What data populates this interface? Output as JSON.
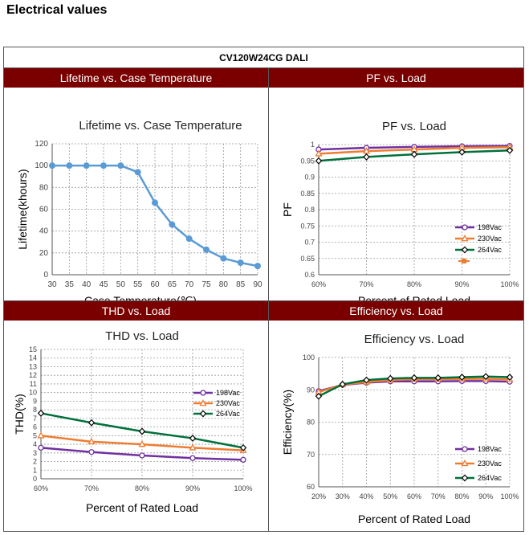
{
  "page": {
    "section_title": "Electrical values",
    "model": "CV120W24CG DALI"
  },
  "colors": {
    "header_bg": "#7a0000",
    "lifetime_line": "#5b9bd5",
    "purple": "#7030a0",
    "orange": "#ed7d31",
    "green": "#00703c"
  },
  "chart_data": [
    {
      "id": "lifetime",
      "header": "Lifetime vs. Case Temperature",
      "type": "line",
      "title": "Lifetime vs. Case Temperature",
      "xlabel": "Case Temperature(℃)",
      "ylabel": "Lifetime(khours)",
      "xlim": [
        30,
        90
      ],
      "ylim": [
        0,
        120
      ],
      "xticks": [
        "30",
        "35",
        "40",
        "45",
        "50",
        "55",
        "60",
        "65",
        "70",
        "75",
        "80",
        "85",
        "90"
      ],
      "yticks": [
        "0",
        "20",
        "40",
        "60",
        "80",
        "100",
        "120"
      ],
      "grid": true,
      "series": [
        {
          "x": [
            30,
            35,
            40,
            45,
            50,
            55,
            60,
            65,
            70,
            75,
            80,
            85,
            90
          ],
          "values": [
            100,
            100,
            100,
            100,
            100,
            94,
            66,
            46,
            33,
            23,
            15,
            11,
            8
          ]
        }
      ]
    },
    {
      "id": "pf",
      "header": "PF vs. Load",
      "type": "line",
      "title": "PF vs. Load",
      "xlabel": "Percent of Rated Load",
      "ylabel": "PF",
      "categories": [
        "60%",
        "70%",
        "80%",
        "90%",
        "100%"
      ],
      "ylim": [
        0.6,
        1
      ],
      "yticks": [
        "0.6",
        "0.65",
        "0.7",
        "0.75",
        "0.8",
        "0.85",
        "0.9",
        "0.95",
        "1"
      ],
      "grid": true,
      "legend": "bottom-right",
      "series": [
        {
          "name": "198Vac",
          "values": [
            0.985,
            0.99,
            0.993,
            0.995,
            0.996
          ]
        },
        {
          "name": "230Vac",
          "values": [
            0.972,
            0.98,
            0.985,
            0.99,
            0.992
          ]
        },
        {
          "name": "264Vac",
          "values": [
            0.95,
            0.962,
            0.97,
            0.977,
            0.982
          ]
        }
      ]
    },
    {
      "id": "thd",
      "header": "THD vs. Load",
      "type": "line",
      "title": "THD vs. Load",
      "xlabel": "Percent of Rated Load",
      "ylabel": "THD(%)",
      "categories": [
        "60%",
        "70%",
        "80%",
        "90%",
        "100%"
      ],
      "ylim": [
        0,
        15
      ],
      "yticks": [
        "0",
        "1",
        "2",
        "3",
        "4",
        "5",
        "6",
        "7",
        "8",
        "9",
        "10",
        "11",
        "12",
        "13",
        "14",
        "15"
      ],
      "grid": true,
      "legend": "right",
      "series": [
        {
          "name": "198Vac",
          "values": [
            3.6,
            3.1,
            2.7,
            2.4,
            2.2
          ]
        },
        {
          "name": "230Vac",
          "values": [
            5.0,
            4.3,
            4.0,
            3.6,
            3.3
          ]
        },
        {
          "name": "264Vac",
          "values": [
            7.6,
            6.5,
            5.5,
            4.7,
            3.6
          ]
        }
      ]
    },
    {
      "id": "eff",
      "header": "Efficiency vs. Load",
      "type": "line",
      "title": "Efficiency vs. Load",
      "xlabel": "Percent of Rated Load",
      "ylabel": "Efficiency(%)",
      "categories": [
        "20%",
        "30%",
        "40%",
        "50%",
        "60%",
        "70%",
        "80%",
        "90%",
        "100%"
      ],
      "ylim": [
        60,
        100
      ],
      "yticks": [
        "60",
        "70",
        "80",
        "90",
        "100"
      ],
      "grid": true,
      "legend": "bottom-right",
      "series": [
        {
          "name": "198Vac",
          "values": [
            89.6,
            91.5,
            92.2,
            92.6,
            92.6,
            92.6,
            92.7,
            92.7,
            92.5
          ]
        },
        {
          "name": "230Vac",
          "values": [
            89.3,
            91.6,
            92.4,
            93.0,
            93.3,
            93.3,
            93.4,
            93.4,
            93.2
          ]
        },
        {
          "name": "264Vac",
          "values": [
            88.0,
            91.7,
            93.0,
            93.5,
            93.7,
            93.7,
            93.9,
            94.1,
            93.9
          ]
        }
      ]
    }
  ]
}
